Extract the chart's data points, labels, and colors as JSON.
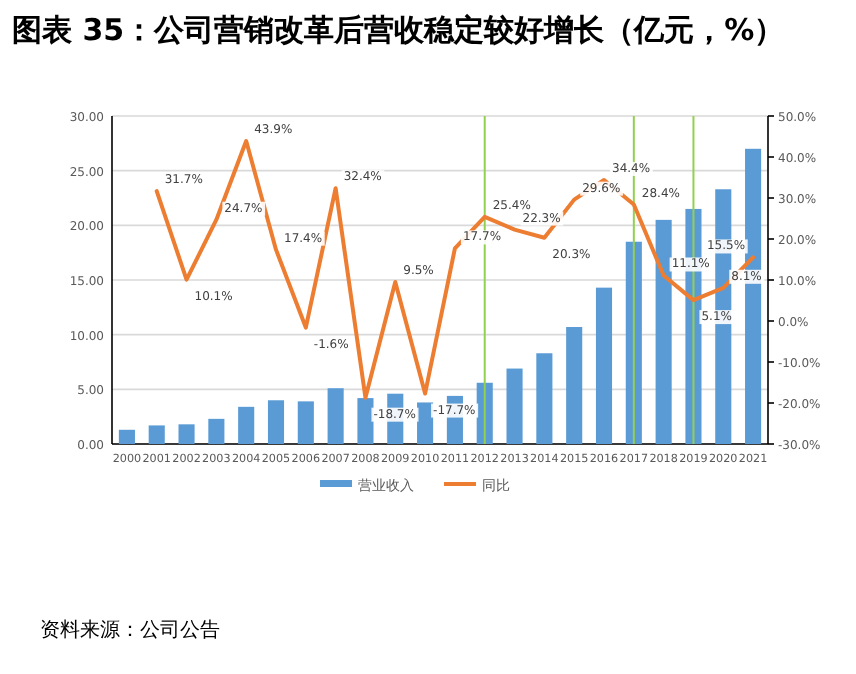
{
  "chart_data": {
    "type": "bar",
    "title": "图表 35：公司营销改革后营收稳定较好增长（亿元，%）",
    "categories": [
      "2000",
      "2001",
      "2002",
      "2003",
      "2004",
      "2005",
      "2006",
      "2007",
      "2008",
      "2009",
      "2010",
      "2011",
      "2012",
      "2013",
      "2014",
      "2015",
      "2016",
      "2017",
      "2018",
      "2019",
      "2020",
      "2021"
    ],
    "series": [
      {
        "name": "营业收入",
        "color": "#5b9bd5",
        "values": [
          1.3,
          1.7,
          1.8,
          2.3,
          3.4,
          4.0,
          3.9,
          5.1,
          4.2,
          4.6,
          3.8,
          4.4,
          5.6,
          6.9,
          8.3,
          10.7,
          14.3,
          18.5,
          20.5,
          21.5,
          23.3,
          27.0
        ]
      },
      {
        "name": "同比",
        "type": "line",
        "axis": "y2",
        "color": "#ed7d31",
        "values": [
          null,
          31.7,
          10.1,
          24.7,
          43.9,
          17.4,
          -1.6,
          32.4,
          -18.7,
          9.5,
          -17.7,
          17.7,
          25.4,
          22.3,
          20.3,
          29.6,
          34.4,
          28.4,
          11.1,
          5.1,
          8.1,
          15.5
        ],
        "value_labels": [
          null,
          "31.7%",
          "10.1%",
          "24.7%",
          "43.9%",
          "17.4%",
          "-1.6%",
          "32.4%",
          "-18.7%",
          "9.5%",
          "-17.7%",
          "17.7%",
          "25.4%",
          "22.3%",
          "20.3%",
          "29.6%",
          "34.4%",
          "28.4%",
          "11.1%",
          "5.1%",
          "8.1%",
          "15.5%"
        ]
      }
    ],
    "ylim": [
      0,
      30
    ],
    "yticks": [
      {
        "value": 0,
        "label": "0.00"
      },
      {
        "value": 5,
        "label": "5.00"
      },
      {
        "value": 10,
        "label": "10.00"
      },
      {
        "value": 15,
        "label": "15.00"
      },
      {
        "value": 20,
        "label": "20.00"
      },
      {
        "value": 25,
        "label": "25.00"
      },
      {
        "value": 30,
        "label": "30.00"
      }
    ],
    "y2lim": [
      -30,
      50
    ],
    "y2ticks": [
      {
        "value": -30,
        "label": "-30.0%"
      },
      {
        "value": -20,
        "label": "-20.0%"
      },
      {
        "value": -10,
        "label": "-10.0%"
      },
      {
        "value": 0,
        "label": "0.0%"
      },
      {
        "value": 10,
        "label": "10.0%"
      },
      {
        "value": 20,
        "label": "20.0%"
      },
      {
        "value": 30,
        "label": "30.0%"
      },
      {
        "value": 40,
        "label": "40.0%"
      },
      {
        "value": 50,
        "label": "50.0%"
      }
    ],
    "grid": "y",
    "legend": "bottom",
    "ref_lines": [
      {
        "axis": "x",
        "value": "2012",
        "color": "#92d050"
      },
      {
        "axis": "x",
        "value": "2017",
        "color": "#92d050"
      },
      {
        "axis": "x",
        "value": "2019",
        "color": "#92d050"
      }
    ],
    "annotations": [
      "资料来源：公司公告"
    ]
  }
}
